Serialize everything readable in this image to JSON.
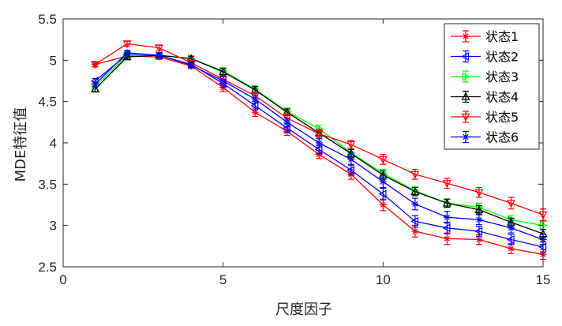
{
  "chart_data": {
    "type": "line",
    "xlabel": "尺度因子",
    "ylabel": "MDE特征值",
    "xlim": [
      0,
      15
    ],
    "ylim": [
      2.5,
      5.5
    ],
    "xticks": [
      "0",
      "5",
      "10",
      "15"
    ],
    "yticks": [
      "2.5",
      "3",
      "3.5",
      "4",
      "4.5",
      "5",
      "5.5"
    ],
    "grid": false,
    "legend_position": "top-right",
    "error_bars": true,
    "x": [
      1,
      2,
      3,
      4,
      5,
      6,
      7,
      8,
      9,
      10,
      11,
      12,
      13,
      14,
      15
    ],
    "series": [
      {
        "name": "状态1",
        "color": "#ff0000",
        "marker": "star",
        "values": [
          4.95,
          5.05,
          5.04,
          4.93,
          4.67,
          4.37,
          4.14,
          3.86,
          3.62,
          3.25,
          2.93,
          2.84,
          2.83,
          2.72,
          2.65
        ],
        "errors": [
          0.03,
          0.03,
          0.03,
          0.03,
          0.05,
          0.05,
          0.05,
          0.05,
          0.06,
          0.07,
          0.07,
          0.07,
          0.06,
          0.06,
          0.06
        ]
      },
      {
        "name": "状态2",
        "color": "#0000ff",
        "marker": "triangle-left",
        "values": [
          4.75,
          5.07,
          5.06,
          4.95,
          4.72,
          4.45,
          4.18,
          3.92,
          3.67,
          3.38,
          3.05,
          2.97,
          2.93,
          2.83,
          2.74
        ],
        "errors": [
          0.03,
          0.03,
          0.03,
          0.03,
          0.05,
          0.05,
          0.05,
          0.05,
          0.06,
          0.07,
          0.07,
          0.07,
          0.06,
          0.06,
          0.06
        ]
      },
      {
        "name": "状态3",
        "color": "#00ff00",
        "marker": "triangle-right",
        "values": [
          4.68,
          5.06,
          5.06,
          5.02,
          4.87,
          4.65,
          4.38,
          4.17,
          3.88,
          3.63,
          3.42,
          3.27,
          3.22,
          3.07,
          3.0
        ],
        "errors": [
          0.03,
          0.03,
          0.03,
          0.03,
          0.04,
          0.04,
          0.04,
          0.04,
          0.05,
          0.05,
          0.05,
          0.05,
          0.05,
          0.05,
          0.05
        ]
      },
      {
        "name": "状态4",
        "color": "#000000",
        "marker": "triangle-up",
        "values": [
          4.65,
          5.04,
          5.06,
          5.02,
          4.86,
          4.64,
          4.37,
          4.12,
          3.87,
          3.61,
          3.41,
          3.27,
          3.19,
          3.04,
          2.9
        ],
        "errors": [
          0.03,
          0.03,
          0.03,
          0.03,
          0.04,
          0.04,
          0.04,
          0.04,
          0.05,
          0.05,
          0.05,
          0.05,
          0.05,
          0.05,
          0.05
        ]
      },
      {
        "name": "状态5",
        "color": "#ff0000",
        "marker": "triangle-down",
        "values": [
          4.95,
          5.2,
          5.15,
          4.97,
          4.77,
          4.57,
          4.3,
          4.11,
          3.98,
          3.8,
          3.62,
          3.51,
          3.4,
          3.27,
          3.13
        ],
        "errors": [
          0.03,
          0.03,
          0.03,
          0.03,
          0.04,
          0.04,
          0.05,
          0.05,
          0.05,
          0.06,
          0.06,
          0.06,
          0.06,
          0.07,
          0.07
        ]
      },
      {
        "name": "状态6",
        "color": "#0000ff",
        "marker": "star",
        "values": [
          4.71,
          5.09,
          5.06,
          4.94,
          4.75,
          4.53,
          4.25,
          4.0,
          3.8,
          3.53,
          3.26,
          3.1,
          3.07,
          2.97,
          2.83
        ],
        "errors": [
          0.03,
          0.03,
          0.03,
          0.03,
          0.05,
          0.05,
          0.05,
          0.05,
          0.06,
          0.07,
          0.07,
          0.07,
          0.06,
          0.06,
          0.06
        ]
      }
    ]
  }
}
